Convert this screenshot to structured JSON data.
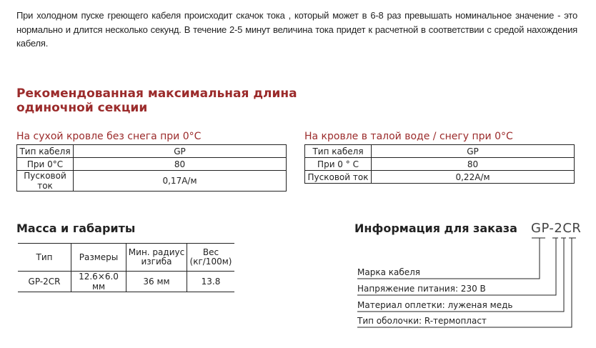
{
  "intro": "При холодном пуске греющего кабеля происходит скачок тока , который может в 6-8 раз превышать номинальное значение - это нормально и длится несколько секунд. В течение 2-5 минут величина тока придет к расчетной в соответствии с средой нахождения кабеля.",
  "section_title_1": "Рекомендованная максимальная длина",
  "section_title_2": "одиночной секции",
  "dry_roof": {
    "title": "На сухой кровле без снега при 0°C",
    "rows": [
      [
        "Тип кабеля",
        "GP"
      ],
      [
        "При 0°C",
        "80"
      ],
      [
        "Пусковой ток",
        "0,17А/м"
      ]
    ]
  },
  "wet_roof": {
    "title": "На кровле в талой воде / снегу при 0°C",
    "rows": [
      [
        "Тип кабеля",
        "GP"
      ],
      [
        "При 0 °  C",
        "80"
      ],
      [
        "Пусковой ток",
        "0,22А/м"
      ]
    ]
  },
  "mass": {
    "title": "Масса и габариты",
    "headers": [
      "Тип",
      "Размеры",
      "Мин. радиус изгиба",
      "Вес (кг/100м)"
    ],
    "row": [
      "GP-2CR",
      "12.6×6.0 мм",
      "36 мм",
      "13.8"
    ]
  },
  "order": {
    "title": "Информация для заказа",
    "code": "GP-2CR",
    "items": [
      "Марка кабеля",
      "Напряжение питания: 230 В",
      "Материал оплетки: луженая медь",
      "Тип оболочки: R-термопласт"
    ]
  },
  "colors": {
    "accent": "#9b2b2b"
  }
}
